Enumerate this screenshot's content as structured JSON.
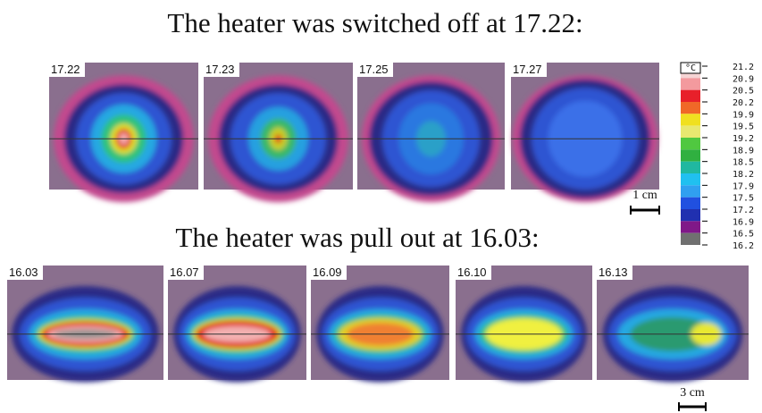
{
  "title_top": "The heater was switched off at 17.22:",
  "title_bottom": "The heater was pull out at 16.03:",
  "top_images": [
    "17.22",
    "17.23",
    "17.25",
    "17.27"
  ],
  "bottom_images": [
    "16.03",
    "16.07",
    "16.09",
    "16.10",
    "16.13"
  ],
  "colorbar": {
    "unit": "°C",
    "labels": [
      "21.2",
      "20.9",
      "20.5",
      "20.2",
      "19.9",
      "19.5",
      "19.2",
      "18.9",
      "18.5",
      "18.2",
      "17.9",
      "17.5",
      "17.2",
      "16.9",
      "16.5",
      "16.2"
    ]
  },
  "scale_top": "1 cm",
  "scale_bottom": "3 cm"
}
